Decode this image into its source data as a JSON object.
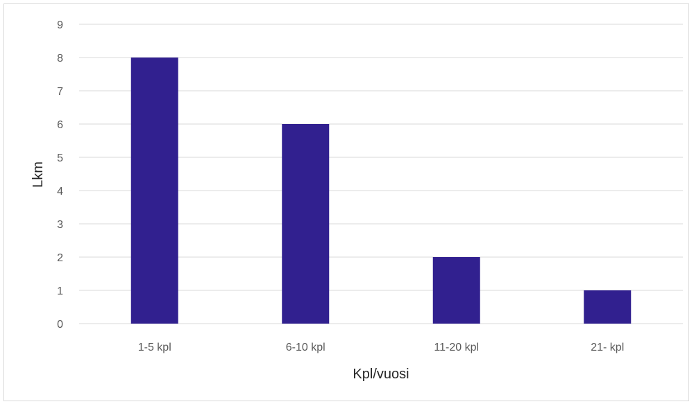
{
  "chart_data": {
    "type": "bar",
    "categories": [
      "1-5 kpl",
      "6-10 kpl",
      "11-20 kpl",
      "21- kpl"
    ],
    "values": [
      8,
      6,
      2,
      1
    ],
    "title": "",
    "xlabel": "Kpl/vuosi",
    "ylabel": "Lkm",
    "ylim": [
      0,
      9
    ],
    "yticks": [
      0,
      1,
      2,
      3,
      4,
      5,
      6,
      7,
      8,
      9
    ],
    "grid": true,
    "legend": "none",
    "bar_color": "#31208f"
  }
}
